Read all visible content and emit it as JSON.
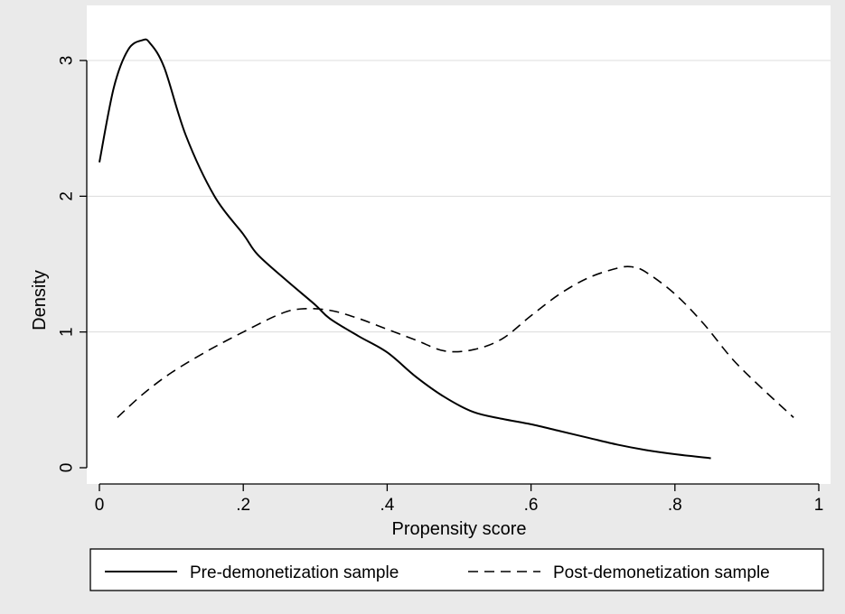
{
  "chart_data": {
    "type": "line",
    "xlabel": "Propensity score",
    "ylabel": "Density",
    "xlim": [
      0,
      1
    ],
    "ylim": [
      0,
      3.3
    ],
    "x_ticks": [
      0,
      0.2,
      0.4,
      0.6,
      0.8,
      1
    ],
    "x_tick_labels": [
      "0",
      ".2",
      ".4",
      ".6",
      ".8",
      "1"
    ],
    "y_ticks": [
      0,
      1,
      2,
      3
    ],
    "y_tick_labels": [
      "0",
      "1",
      "2",
      "3"
    ],
    "grid": "horizontal",
    "legend_position": "bottom",
    "series": [
      {
        "name": "Pre-demonetization sample",
        "style": "solid",
        "x": [
          0.0,
          0.02,
          0.04,
          0.06,
          0.07,
          0.09,
          0.12,
          0.16,
          0.2,
          0.22,
          0.26,
          0.3,
          0.32,
          0.36,
          0.4,
          0.44,
          0.48,
          0.52,
          0.56,
          0.6,
          0.64,
          0.68,
          0.72,
          0.76,
          0.8,
          0.85
        ],
        "y": [
          2.25,
          2.8,
          3.08,
          3.15,
          3.13,
          2.95,
          2.45,
          2.0,
          1.72,
          1.57,
          1.38,
          1.2,
          1.1,
          0.97,
          0.85,
          0.67,
          0.52,
          0.41,
          0.36,
          0.32,
          0.27,
          0.22,
          0.17,
          0.13,
          0.1,
          0.07
        ]
      },
      {
        "name": "Post-demonetization sample",
        "style": "dashed",
        "x": [
          0.025,
          0.06,
          0.1,
          0.15,
          0.2,
          0.25,
          0.28,
          0.32,
          0.36,
          0.4,
          0.44,
          0.48,
          0.52,
          0.56,
          0.6,
          0.64,
          0.68,
          0.72,
          0.74,
          0.76,
          0.8,
          0.84,
          0.88,
          0.92,
          0.965
        ],
        "y": [
          0.37,
          0.54,
          0.7,
          0.86,
          1.0,
          1.13,
          1.17,
          1.16,
          1.1,
          1.02,
          0.94,
          0.86,
          0.87,
          0.95,
          1.12,
          1.28,
          1.4,
          1.47,
          1.48,
          1.44,
          1.28,
          1.06,
          0.8,
          0.59,
          0.37
        ]
      }
    ]
  }
}
